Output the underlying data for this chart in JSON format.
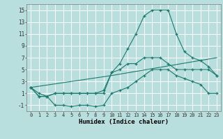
{
  "title": "",
  "xlabel": "Humidex (Indice chaleur)",
  "bg_color": "#b8dede",
  "grid_color": "#ffffff",
  "line_color": "#1a7a6e",
  "xlim": [
    -0.5,
    23.5
  ],
  "ylim": [
    -2,
    16
  ],
  "xticks": [
    0,
    1,
    2,
    3,
    4,
    5,
    6,
    7,
    8,
    9,
    10,
    11,
    12,
    13,
    14,
    15,
    16,
    17,
    18,
    19,
    20,
    21,
    22,
    23
  ],
  "yticks": [
    -1,
    1,
    3,
    5,
    7,
    9,
    11,
    13,
    15
  ],
  "line1_x": [
    0,
    1,
    2,
    3,
    4,
    5,
    6,
    7,
    8,
    9,
    10,
    11,
    12,
    13,
    14,
    15,
    16,
    17,
    18,
    19,
    20,
    21,
    22,
    23
  ],
  "line1_y": [
    2,
    1,
    0.5,
    1,
    1,
    1,
    1,
    1,
    1,
    1,
    4.5,
    5,
    6,
    6,
    7,
    7,
    7,
    6,
    5,
    5,
    5,
    5,
    5,
    4
  ],
  "line2_x": [
    0,
    1,
    2,
    3,
    4,
    5,
    6,
    7,
    8,
    9,
    10,
    11,
    12,
    13,
    14,
    15,
    16,
    17,
    18,
    19,
    20,
    21,
    22,
    23
  ],
  "line2_y": [
    2,
    0.5,
    0.5,
    1,
    1,
    1,
    1,
    1,
    1,
    1.5,
    4.5,
    6,
    8.5,
    11,
    14,
    15,
    15,
    15,
    11,
    8,
    7,
    6.5,
    5.5,
    4
  ],
  "line3_x": [
    0,
    1,
    2,
    3,
    4,
    5,
    6,
    7,
    8,
    9,
    10,
    11,
    12,
    13,
    14,
    15,
    16,
    17,
    18,
    19,
    20,
    21,
    22,
    23
  ],
  "line3_y": [
    2,
    0.5,
    0.5,
    -1,
    -1,
    -1.2,
    -1,
    -1,
    -1.2,
    -1,
    1,
    1.5,
    2,
    3,
    4,
    5,
    5,
    5,
    4,
    3.5,
    3,
    2.5,
    1,
    1
  ],
  "line4_x": [
    0,
    10,
    23
  ],
  "line4_y": [
    2,
    4,
    7
  ]
}
